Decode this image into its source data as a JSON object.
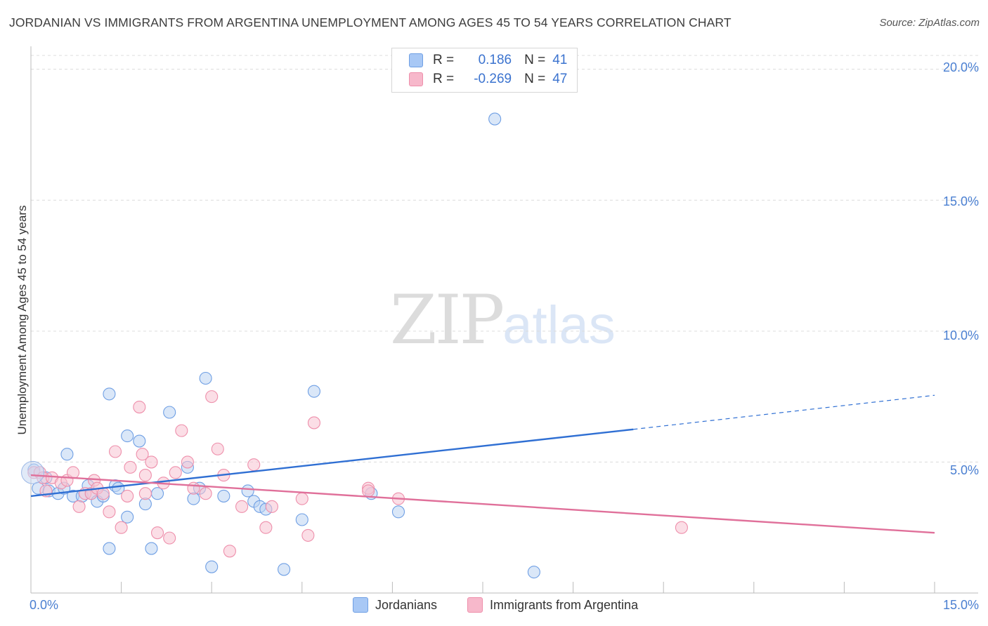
{
  "title": "JORDANIAN VS IMMIGRANTS FROM ARGENTINA UNEMPLOYMENT AMONG AGES 45 TO 54 YEARS CORRELATION CHART",
  "source": "Source: ZipAtlas.com",
  "watermark": {
    "zip": "ZIP",
    "atlas": "atlas"
  },
  "legend": {
    "rows": [
      {
        "r_label": "R =",
        "r_value": "0.186",
        "n_label": "N =",
        "n_value": "41",
        "color": "#a8c8f5"
      },
      {
        "r_label": "R =",
        "r_value": "-0.269",
        "n_label": "N =",
        "n_value": "47",
        "color": "#f7b8cb"
      }
    ]
  },
  "chart_data": {
    "type": "scatter",
    "title": "JORDANIAN VS IMMIGRANTS FROM ARGENTINA UNEMPLOYMENT AMONG AGES 45 TO 54 YEARS CORRELATION CHART",
    "xlabel": "",
    "ylabel": "Unemployment Among Ages 45 to 54 years",
    "xlim": [
      0,
      15
    ],
    "ylim": [
      0,
      20.5
    ],
    "x_tick_labels": [
      "0.0%",
      "15.0%"
    ],
    "y_ticks": [
      5,
      10,
      15,
      20
    ],
    "y_tick_labels": [
      "5.0%",
      "10.0%",
      "15.0%",
      "20.0%"
    ],
    "grid": true,
    "legend_position": "bottom",
    "series": [
      {
        "name": "Jordanians",
        "color": "#6f9fe4",
        "fill": "#bcd3f3",
        "line_color": "#2f6fd3",
        "trend": {
          "x0": 0,
          "y0": 3.7,
          "x1": 10.0,
          "y1": 6.25,
          "dash_x1": 15,
          "dash_y1": 7.55
        },
        "points": [
          [
            0.05,
            4.7
          ],
          [
            0.12,
            4.0
          ],
          [
            0.25,
            4.4
          ],
          [
            0.3,
            3.9
          ],
          [
            0.45,
            3.8
          ],
          [
            0.55,
            4.0
          ],
          [
            0.6,
            5.3
          ],
          [
            0.7,
            3.7
          ],
          [
            0.85,
            3.7
          ],
          [
            0.95,
            4.1
          ],
          [
            1.0,
            3.8
          ],
          [
            1.1,
            3.5
          ],
          [
            1.2,
            3.7
          ],
          [
            1.3,
            7.6
          ],
          [
            1.4,
            4.1
          ],
          [
            1.45,
            4.0
          ],
          [
            1.6,
            2.9
          ],
          [
            1.6,
            6.0
          ],
          [
            1.8,
            5.8
          ],
          [
            1.9,
            3.4
          ],
          [
            2.1,
            3.8
          ],
          [
            2.0,
            1.7
          ],
          [
            2.3,
            6.9
          ],
          [
            2.6,
            4.8
          ],
          [
            2.7,
            3.6
          ],
          [
            2.8,
            4.0
          ],
          [
            2.9,
            8.2
          ],
          [
            3.0,
            1.0
          ],
          [
            3.2,
            3.7
          ],
          [
            3.6,
            3.9
          ],
          [
            3.7,
            3.5
          ],
          [
            3.8,
            3.3
          ],
          [
            4.2,
            0.9
          ],
          [
            4.5,
            2.8
          ],
          [
            4.7,
            7.7
          ],
          [
            5.65,
            3.8
          ],
          [
            6.1,
            3.1
          ],
          [
            7.7,
            18.1
          ],
          [
            8.35,
            0.8
          ],
          [
            1.3,
            1.7
          ],
          [
            3.9,
            3.2
          ]
        ]
      },
      {
        "name": "Immigrants from Argentina",
        "color": "#ee8fab",
        "fill": "#f7c3d2",
        "line_color": "#e0709a",
        "trend": {
          "x0": 0,
          "y0": 4.5,
          "x1": 15,
          "y1": 2.3
        },
        "points": [
          [
            0.05,
            4.6
          ],
          [
            0.15,
            4.6
          ],
          [
            0.2,
            4.4
          ],
          [
            0.35,
            4.4
          ],
          [
            0.5,
            4.2
          ],
          [
            0.6,
            4.3
          ],
          [
            0.7,
            4.6
          ],
          [
            0.8,
            3.3
          ],
          [
            0.9,
            3.8
          ],
          [
            1.0,
            3.8
          ],
          [
            1.05,
            4.3
          ],
          [
            1.1,
            4.0
          ],
          [
            1.2,
            3.8
          ],
          [
            1.3,
            3.1
          ],
          [
            1.4,
            5.4
          ],
          [
            1.5,
            2.5
          ],
          [
            1.6,
            3.7
          ],
          [
            1.65,
            4.8
          ],
          [
            1.8,
            7.1
          ],
          [
            1.85,
            5.3
          ],
          [
            1.9,
            4.5
          ],
          [
            2.0,
            5.0
          ],
          [
            2.1,
            2.3
          ],
          [
            2.2,
            4.2
          ],
          [
            2.3,
            2.1
          ],
          [
            2.4,
            4.6
          ],
          [
            2.5,
            6.2
          ],
          [
            2.6,
            5.0
          ],
          [
            2.7,
            4.0
          ],
          [
            2.9,
            3.8
          ],
          [
            3.0,
            7.5
          ],
          [
            3.1,
            5.5
          ],
          [
            3.2,
            4.5
          ],
          [
            3.3,
            1.6
          ],
          [
            3.7,
            4.9
          ],
          [
            3.9,
            2.5
          ],
          [
            4.0,
            3.3
          ],
          [
            4.5,
            3.6
          ],
          [
            4.6,
            2.2
          ],
          [
            4.7,
            6.5
          ],
          [
            5.6,
            4.0
          ],
          [
            6.1,
            3.6
          ],
          [
            10.8,
            2.5
          ],
          [
            0.25,
            3.9
          ],
          [
            1.9,
            3.8
          ],
          [
            3.5,
            3.3
          ],
          [
            5.6,
            3.9
          ]
        ]
      }
    ]
  },
  "axis": {
    "y_labels": [
      "20.0%",
      "15.0%",
      "10.0%",
      "5.0%"
    ],
    "x_left": "0.0%",
    "x_right": "15.0%",
    "ylabel": "Unemployment Among Ages 45 to 54 years"
  },
  "bottom_legend": [
    {
      "label": "Jordanians",
      "color": "#a8c8f5"
    },
    {
      "label": "Immigrants from Argentina",
      "color": "#f7b8cb"
    }
  ]
}
